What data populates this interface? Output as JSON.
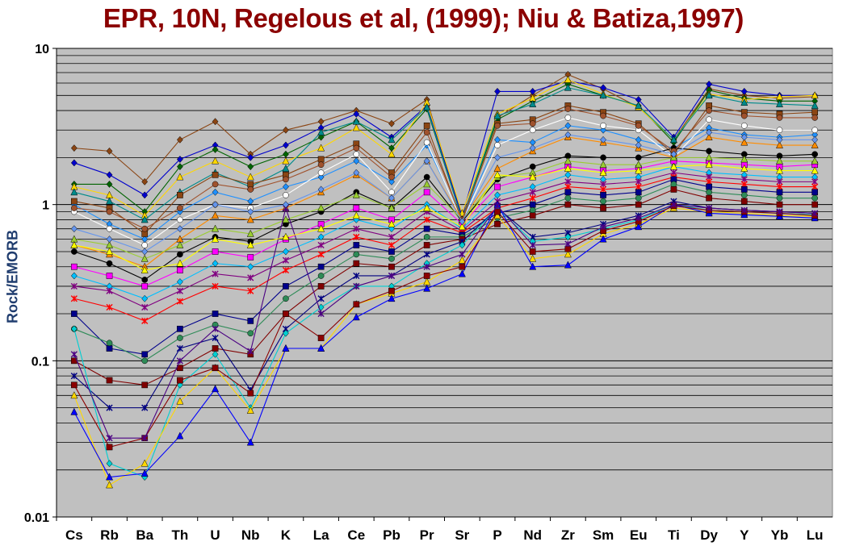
{
  "chart_data": {
    "type": "line",
    "title": "EPR, 10N, Regelous et al, (1999); Niu & Batiza,1997)",
    "ylabel": "Rock/EMORB",
    "xlabel": "",
    "yscale": "log",
    "ylim": [
      0.01,
      10
    ],
    "ytick_labels": [
      "0.01",
      "0.1",
      "1",
      "10"
    ],
    "grid": true,
    "legend": "none",
    "categories": [
      "Cs",
      "Rb",
      "Ba",
      "Th",
      "U",
      "Nb",
      "K",
      "La",
      "Ce",
      "Pb",
      "Pr",
      "Sr",
      "P",
      "Nd",
      "Zr",
      "Sm",
      "Eu",
      "Ti",
      "Dy",
      "Y",
      "Yb",
      "Lu"
    ],
    "plot_background": "#c0c0c0",
    "series": [
      {
        "color": "#8b4513",
        "marker": "diamond",
        "values": [
          2.3,
          2.2,
          1.4,
          2.6,
          3.4,
          2.1,
          3.0,
          3.4,
          4.0,
          3.3,
          4.7,
          0.82,
          3.6,
          5.0,
          6.8,
          5.5,
          4.2,
          2.6,
          5.5,
          5.0,
          4.8,
          4.9
        ]
      },
      {
        "color": "#0000cc",
        "marker": "diamond",
        "values": [
          1.85,
          1.55,
          1.15,
          1.95,
          2.4,
          2.0,
          2.4,
          3.1,
          3.8,
          2.7,
          4.3,
          0.84,
          5.3,
          5.3,
          6.2,
          5.6,
          4.7,
          2.7,
          5.9,
          5.3,
          5.0,
          5.0
        ]
      },
      {
        "color": "#006400",
        "marker": "diamond",
        "values": [
          1.35,
          1.35,
          0.9,
          1.75,
          2.25,
          1.75,
          2.1,
          2.7,
          3.4,
          2.3,
          4.1,
          0.8,
          3.5,
          4.6,
          5.9,
          5.0,
          4.3,
          2.5,
          5.4,
          4.8,
          4.6,
          4.6
        ]
      },
      {
        "color": "#ffd700",
        "marker": "triangle",
        "values": [
          1.3,
          1.15,
          0.85,
          1.5,
          1.9,
          1.5,
          1.9,
          2.3,
          3.1,
          2.1,
          4.5,
          0.88,
          3.8,
          4.8,
          6.3,
          5.1,
          4.2,
          2.6,
          5.1,
          4.7,
          4.9,
          5.0
        ]
      },
      {
        "color": "#008b8b",
        "marker": "triangle",
        "values": [
          1.2,
          1.05,
          0.8,
          1.2,
          1.6,
          1.3,
          1.7,
          2.9,
          3.4,
          2.6,
          4.2,
          0.8,
          3.7,
          4.4,
          5.6,
          5.0,
          4.3,
          2.6,
          5.0,
          4.5,
          4.4,
          4.3
        ]
      },
      {
        "color": "#1e90ff",
        "marker": "diamond",
        "values": [
          1.0,
          0.75,
          0.6,
          0.9,
          1.2,
          1.05,
          1.3,
          1.5,
          1.9,
          1.4,
          2.4,
          0.8,
          2.6,
          2.5,
          3.2,
          3.0,
          2.6,
          2.3,
          3.1,
          2.8,
          2.7,
          2.8
        ]
      },
      {
        "color": "#ffffff",
        "marker": "circle",
        "values": [
          0.9,
          0.7,
          0.55,
          0.8,
          1.0,
          0.95,
          1.15,
          1.6,
          2.1,
          1.2,
          2.5,
          0.78,
          2.4,
          3.0,
          3.6,
          3.2,
          3.0,
          2.0,
          3.5,
          3.2,
          3.0,
          3.0
        ]
      },
      {
        "color": "#8b4513",
        "marker": "square",
        "values": [
          1.05,
          0.95,
          0.65,
          1.15,
          1.55,
          1.35,
          1.55,
          1.95,
          2.45,
          1.6,
          3.2,
          0.78,
          3.3,
          3.5,
          4.3,
          3.9,
          3.3,
          2.1,
          4.3,
          3.9,
          3.8,
          3.9
        ]
      },
      {
        "color": "#ff8c00",
        "marker": "triangle",
        "values": [
          0.55,
          0.48,
          0.4,
          0.6,
          0.85,
          0.8,
          0.95,
          1.2,
          1.55,
          1.1,
          1.9,
          0.8,
          1.7,
          2.2,
          2.7,
          2.5,
          2.3,
          2.0,
          2.7,
          2.5,
          2.4,
          2.4
        ]
      },
      {
        "color": "#000000",
        "marker": "circle",
        "values": [
          0.5,
          0.42,
          0.33,
          0.48,
          0.62,
          0.58,
          0.75,
          0.9,
          1.2,
          0.95,
          1.5,
          0.78,
          1.45,
          1.75,
          2.05,
          2.0,
          2.0,
          2.3,
          2.2,
          2.1,
          2.05,
          2.1
        ]
      },
      {
        "color": "#ff00ff",
        "marker": "square",
        "values": [
          0.4,
          0.35,
          0.3,
          0.38,
          0.5,
          0.46,
          0.6,
          0.75,
          0.95,
          0.8,
          1.2,
          0.75,
          1.3,
          1.5,
          1.75,
          1.65,
          1.7,
          1.9,
          1.85,
          1.8,
          1.75,
          1.8
        ]
      },
      {
        "color": "#9acd32",
        "marker": "triangle",
        "values": [
          0.6,
          0.55,
          0.45,
          0.55,
          0.7,
          0.65,
          0.8,
          0.95,
          1.15,
          0.95,
          1.35,
          0.8,
          1.5,
          1.6,
          1.9,
          1.8,
          1.8,
          2.0,
          2.0,
          1.95,
          1.9,
          1.9
        ]
      },
      {
        "color": "#00bfff",
        "marker": "diamond",
        "values": [
          0.35,
          0.3,
          0.25,
          0.32,
          0.42,
          0.4,
          0.5,
          0.62,
          0.8,
          0.7,
          1.0,
          0.7,
          1.15,
          1.3,
          1.55,
          1.45,
          1.5,
          1.75,
          1.6,
          1.55,
          1.5,
          1.5
        ]
      },
      {
        "color": "#800080",
        "marker": "star",
        "values": [
          0.3,
          0.28,
          0.22,
          0.28,
          0.36,
          0.34,
          0.44,
          0.55,
          0.7,
          0.62,
          0.9,
          0.68,
          1.05,
          1.2,
          1.4,
          1.35,
          1.4,
          1.6,
          1.5,
          1.45,
          1.4,
          1.4
        ]
      },
      {
        "color": "#ff0000",
        "marker": "star",
        "values": [
          0.25,
          0.22,
          0.18,
          0.24,
          0.3,
          0.28,
          0.38,
          0.48,
          0.62,
          0.55,
          0.8,
          0.66,
          0.95,
          1.1,
          1.3,
          1.25,
          1.3,
          1.5,
          1.4,
          1.35,
          1.3,
          1.3
        ]
      },
      {
        "color": "#00008b",
        "marker": "square",
        "values": [
          0.2,
          0.12,
          0.11,
          0.16,
          0.2,
          0.18,
          0.3,
          0.4,
          0.55,
          0.5,
          0.7,
          0.64,
          0.88,
          1.0,
          1.2,
          1.15,
          1.2,
          1.45,
          1.3,
          1.25,
          1.2,
          1.2
        ]
      },
      {
        "color": "#2e8b57",
        "marker": "circle",
        "values": [
          0.16,
          0.13,
          0.1,
          0.14,
          0.17,
          0.15,
          0.25,
          0.35,
          0.48,
          0.45,
          0.62,
          0.62,
          0.82,
          0.92,
          1.1,
          1.05,
          1.1,
          1.35,
          1.2,
          1.15,
          1.1,
          1.1
        ]
      },
      {
        "color": "#800000",
        "marker": "square",
        "values": [
          0.1,
          0.075,
          0.07,
          0.09,
          0.12,
          0.11,
          0.2,
          0.3,
          0.42,
          0.4,
          0.55,
          0.6,
          0.75,
          0.85,
          1.0,
          0.95,
          1.0,
          1.25,
          1.1,
          1.05,
          1.0,
          1.0
        ]
      },
      {
        "color": "#000080",
        "marker": "star",
        "values": [
          0.08,
          0.05,
          0.05,
          0.12,
          0.14,
          0.065,
          0.16,
          0.25,
          0.35,
          0.35,
          0.48,
          0.58,
          0.95,
          0.62,
          0.66,
          0.75,
          0.85,
          1.05,
          0.95,
          0.92,
          0.9,
          0.88
        ]
      },
      {
        "color": "#00ced1",
        "marker": "diamond",
        "values": [
          0.16,
          0.022,
          0.018,
          0.07,
          0.11,
          0.05,
          0.15,
          0.22,
          0.3,
          0.3,
          0.42,
          0.55,
          0.95,
          0.58,
          0.62,
          0.7,
          0.8,
          1.0,
          0.92,
          0.9,
          0.88,
          0.86
        ]
      },
      {
        "color": "#ffd700",
        "marker": "triangle",
        "values": [
          0.06,
          0.016,
          0.022,
          0.055,
          0.09,
          0.048,
          0.12,
          0.12,
          0.23,
          0.27,
          0.32,
          0.44,
          0.85,
          0.45,
          0.48,
          0.65,
          0.75,
          0.95,
          0.9,
          0.88,
          0.85,
          0.84
        ]
      },
      {
        "color": "#0000ff",
        "marker": "triangle",
        "values": [
          0.047,
          0.018,
          0.019,
          0.033,
          0.066,
          0.03,
          0.12,
          0.12,
          0.19,
          0.25,
          0.29,
          0.36,
          1.0,
          0.4,
          0.41,
          0.6,
          0.72,
          1.0,
          0.88,
          0.86,
          0.84,
          0.82
        ]
      },
      {
        "color": "#8b0000",
        "marker": "square",
        "values": [
          0.07,
          0.028,
          0.032,
          0.075,
          0.09,
          0.062,
          0.2,
          0.14,
          0.23,
          0.28,
          0.35,
          0.4,
          0.9,
          0.5,
          0.52,
          0.68,
          0.78,
          0.98,
          0.92,
          0.9,
          0.88,
          0.85
        ]
      },
      {
        "color": "#4b0082",
        "marker": "star",
        "values": [
          0.11,
          0.032,
          0.032,
          0.1,
          0.16,
          0.115,
          0.95,
          0.2,
          0.3,
          0.35,
          0.4,
          0.48,
          0.98,
          0.55,
          0.56,
          0.72,
          0.82,
          1.0,
          0.95,
          0.92,
          0.9,
          0.88
        ]
      },
      {
        "color": "#ffff00",
        "marker": "triangle",
        "values": [
          0.55,
          0.5,
          0.38,
          0.42,
          0.6,
          0.55,
          0.62,
          0.7,
          0.85,
          0.75,
          0.95,
          0.72,
          1.55,
          1.5,
          1.7,
          1.6,
          1.65,
          1.75,
          1.8,
          1.7,
          1.65,
          1.65
        ]
      },
      {
        "color": "#a0522d",
        "marker": "circle",
        "values": [
          0.95,
          0.9,
          0.7,
          0.95,
          1.35,
          1.25,
          1.45,
          1.8,
          2.3,
          1.5,
          2.9,
          0.8,
          3.2,
          3.3,
          4.1,
          3.7,
          3.2,
          2.2,
          4.0,
          3.7,
          3.6,
          3.6
        ]
      },
      {
        "color": "#6495ed",
        "marker": "diamond",
        "values": [
          0.7,
          0.6,
          0.5,
          0.7,
          1.0,
          0.9,
          1.0,
          1.25,
          1.6,
          1.1,
          1.9,
          0.78,
          2.0,
          2.3,
          2.8,
          2.6,
          2.4,
          2.1,
          2.9,
          2.7,
          2.6,
          2.6
        ]
      }
    ]
  }
}
